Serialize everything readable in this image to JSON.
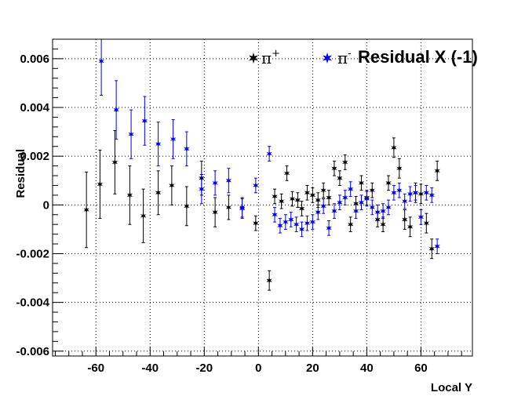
{
  "chart_data": {
    "type": "scatter",
    "title": "Residual X (-1)",
    "xlabel": "Local Y",
    "ylabel": "Residual",
    "xlim": [
      -76,
      79
    ],
    "ylim": [
      -0.0062,
      0.0068
    ],
    "x_ticks": [
      -60,
      -40,
      -20,
      0,
      20,
      40,
      60
    ],
    "x_tick_labels": [
      "-60",
      "-40",
      "-20",
      "0",
      "20",
      "40",
      "60"
    ],
    "y_ticks": [
      -0.006,
      -0.004,
      -0.002,
      0,
      0.002,
      0.004,
      0.006
    ],
    "y_tick_labels": [
      "-0.006",
      "-0.004",
      "-0.002",
      "0",
      "0.002",
      "0.004",
      "0.006"
    ],
    "grid": true,
    "legend_position": "top-right",
    "series": [
      {
        "name": "π⁺",
        "label_base": "π",
        "label_sup": "+",
        "color": "#000000",
        "points": [
          {
            "x": -63.5,
            "y": -0.0002,
            "err": 0.00155
          },
          {
            "x": -58.5,
            "y": 0.00085,
            "err": 0.0014
          },
          {
            "x": -53,
            "y": 0.00175,
            "err": 0.0013
          },
          {
            "x": -47.5,
            "y": 0.0004,
            "err": 0.0012
          },
          {
            "x": -42.5,
            "y": -0.00045,
            "err": 0.0011
          },
          {
            "x": -37,
            "y": 0.0005,
            "err": 0.0009
          },
          {
            "x": -32,
            "y": 0.0008,
            "err": 0.0008
          },
          {
            "x": -26.5,
            "y": -5e-05,
            "err": 0.0008
          },
          {
            "x": -21,
            "y": 0.0011,
            "err": 0.0007
          },
          {
            "x": -16,
            "y": -0.0003,
            "err": 0.0006
          },
          {
            "x": -11,
            "y": -0.0001,
            "err": 0.0005
          },
          {
            "x": -6,
            "y": -0.0001,
            "err": 0.0004
          },
          {
            "x": -1,
            "y": -0.00075,
            "err": 0.0003
          },
          {
            "x": 4,
            "y": -0.0031,
            "err": 0.0004
          },
          {
            "x": 6,
            "y": 0.00035,
            "err": 0.0003
          },
          {
            "x": 8.5,
            "y": 0.00015,
            "err": 0.0003
          },
          {
            "x": 10.5,
            "y": 0.0013,
            "err": 0.0003
          },
          {
            "x": 12.5,
            "y": 0.00025,
            "err": 0.0003
          },
          {
            "x": 14.5,
            "y": 0.0002,
            "err": 0.0003
          },
          {
            "x": 16,
            "y": -0.00015,
            "err": 0.0003
          },
          {
            "x": 18,
            "y": 0.0005,
            "err": 0.0003
          },
          {
            "x": 20,
            "y": 0.0004,
            "err": 0.0003
          },
          {
            "x": 22,
            "y": 0.0002,
            "err": 0.0003
          },
          {
            "x": 24,
            "y": 0.0006,
            "err": 0.0003
          },
          {
            "x": 26,
            "y": 0.0003,
            "err": 0.0003
          },
          {
            "x": 28,
            "y": 0.0015,
            "err": 0.0003
          },
          {
            "x": 30,
            "y": 0.0011,
            "err": 0.0003
          },
          {
            "x": 32,
            "y": 0.00175,
            "err": 0.0003
          },
          {
            "x": 34,
            "y": -0.0008,
            "err": 0.0003
          },
          {
            "x": 36,
            "y": 5e-05,
            "err": 0.0003
          },
          {
            "x": 38,
            "y": 0.0009,
            "err": 0.0003
          },
          {
            "x": 40,
            "y": 0.0003,
            "err": 0.0003
          },
          {
            "x": 42,
            "y": 0.0006,
            "err": 0.0003
          },
          {
            "x": 44,
            "y": -0.0006,
            "err": 0.0003
          },
          {
            "x": 46,
            "y": -0.0008,
            "err": 0.0003
          },
          {
            "x": 48,
            "y": 0.0009,
            "err": 0.0003
          },
          {
            "x": 50,
            "y": 0.00235,
            "err": 0.0004
          },
          {
            "x": 52,
            "y": 0.0015,
            "err": 0.0004
          },
          {
            "x": 54,
            "y": -0.0006,
            "err": 0.0004
          },
          {
            "x": 56,
            "y": -0.0009,
            "err": 0.0004
          },
          {
            "x": 58,
            "y": 0.0005,
            "err": 0.0004
          },
          {
            "x": 60,
            "y": 0.00045,
            "err": 0.0004
          },
          {
            "x": 62,
            "y": -0.00075,
            "err": 0.0004
          },
          {
            "x": 64,
            "y": -0.0018,
            "err": 0.0004
          },
          {
            "x": 66,
            "y": 0.0014,
            "err": 0.0004
          }
        ]
      },
      {
        "name": "π⁻",
        "label_base": "π",
        "label_sup": "-",
        "color": "#0000ee",
        "points": [
          {
            "x": -58,
            "y": 0.0059,
            "err": 0.0014
          },
          {
            "x": -52.5,
            "y": 0.0039,
            "err": 0.0012
          },
          {
            "x": -47,
            "y": 0.0029,
            "err": 0.001
          },
          {
            "x": -42,
            "y": 0.00345,
            "err": 0.001
          },
          {
            "x": -37,
            "y": 0.0025,
            "err": 0.0009
          },
          {
            "x": -31.5,
            "y": 0.0027,
            "err": 0.0008
          },
          {
            "x": -26.5,
            "y": 0.0023,
            "err": 0.0007
          },
          {
            "x": -21,
            "y": 0.00065,
            "err": 0.0006
          },
          {
            "x": -16,
            "y": 0.0009,
            "err": 0.0005
          },
          {
            "x": -11,
            "y": 0.001,
            "err": 0.0005
          },
          {
            "x": -6,
            "y": -0.00015,
            "err": 0.0004
          },
          {
            "x": -1,
            "y": 0.0008,
            "err": 0.0003
          },
          {
            "x": 4,
            "y": 0.0021,
            "err": 0.0003
          },
          {
            "x": 6,
            "y": -0.0004,
            "err": 0.0003
          },
          {
            "x": 8,
            "y": -0.00085,
            "err": 0.0003
          },
          {
            "x": 10,
            "y": -0.0007,
            "err": 0.0003
          },
          {
            "x": 12,
            "y": -0.0006,
            "err": 0.0003
          },
          {
            "x": 14,
            "y": -0.0008,
            "err": 0.0003
          },
          {
            "x": 16,
            "y": -0.001,
            "err": 0.0003
          },
          {
            "x": 18,
            "y": -0.00075,
            "err": 0.0003
          },
          {
            "x": 20,
            "y": -0.0007,
            "err": 0.0003
          },
          {
            "x": 22,
            "y": -0.0003,
            "err": 0.0003
          },
          {
            "x": 24,
            "y": -5e-05,
            "err": 0.0003
          },
          {
            "x": 26,
            "y": -0.00095,
            "err": 0.0003
          },
          {
            "x": 28,
            "y": -0.00025,
            "err": 0.0003
          },
          {
            "x": 30,
            "y": 0.0001,
            "err": 0.0003
          },
          {
            "x": 32,
            "y": 0.0003,
            "err": 0.0003
          },
          {
            "x": 34,
            "y": 0.00065,
            "err": 0.0003
          },
          {
            "x": 36,
            "y": -0.00025,
            "err": 0.0003
          },
          {
            "x": 38,
            "y": 0.0001,
            "err": 0.0003
          },
          {
            "x": 40,
            "y": 0.00025,
            "err": 0.0003
          },
          {
            "x": 42,
            "y": -0.0001,
            "err": 0.0003
          },
          {
            "x": 44,
            "y": -0.0003,
            "err": 0.0003
          },
          {
            "x": 46,
            "y": -0.00025,
            "err": 0.0003
          },
          {
            "x": 48,
            "y": -0.0001,
            "err": 0.0003
          },
          {
            "x": 50,
            "y": 0.0005,
            "err": 0.0003
          },
          {
            "x": 52,
            "y": 0.0006,
            "err": 0.0003
          },
          {
            "x": 54,
            "y": 0.00015,
            "err": 0.0003
          },
          {
            "x": 56,
            "y": 0.00045,
            "err": 0.0003
          },
          {
            "x": 58,
            "y": 0.0005,
            "err": 0.0003
          },
          {
            "x": 60,
            "y": -0.0005,
            "err": 0.0003
          },
          {
            "x": 62,
            "y": 0.0005,
            "err": 0.0003
          },
          {
            "x": 64,
            "y": 0.0004,
            "err": 0.0003
          },
          {
            "x": 66,
            "y": -0.0017,
            "err": 0.0003
          }
        ]
      }
    ]
  }
}
